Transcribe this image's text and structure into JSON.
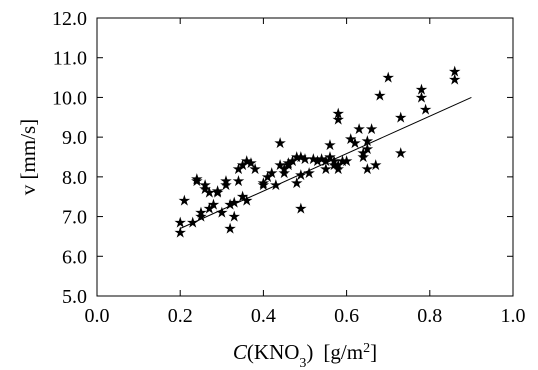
{
  "chart_data": {
    "type": "scatter",
    "xlabel": {
      "prefix_italic": "C",
      "base": "(KNO",
      "sub": "3",
      "after": ")",
      "unit": "[g/m",
      "unit_sup": "2",
      "unit_end": "]"
    },
    "ylabel": "v  [mm/s]",
    "xlim": [
      0.0,
      1.0
    ],
    "ylim": [
      5.0,
      12.0
    ],
    "x_ticks": [
      0.0,
      0.2,
      0.4,
      0.6,
      0.8,
      1.0
    ],
    "y_ticks": [
      5.0,
      6.0,
      7.0,
      8.0,
      9.0,
      10.0,
      11.0,
      12.0
    ],
    "x_tick_labels": [
      "0.0",
      "0.2",
      "0.4",
      "0.6",
      "0.8",
      "1.0"
    ],
    "y_tick_labels": [
      "5.0",
      "6.0",
      "7.0",
      "8.0",
      "9.0",
      "10.0",
      "11.0",
      "12.0"
    ],
    "grid": false,
    "marker": "star",
    "series": [
      {
        "points": [
          [
            0.2,
            6.6
          ],
          [
            0.2,
            6.85
          ],
          [
            0.21,
            7.4
          ],
          [
            0.23,
            6.85
          ],
          [
            0.24,
            7.9
          ],
          [
            0.24,
            7.95
          ],
          [
            0.25,
            7.0
          ],
          [
            0.25,
            7.1
          ],
          [
            0.26,
            7.7
          ],
          [
            0.26,
            7.8
          ],
          [
            0.27,
            7.2
          ],
          [
            0.27,
            7.6
          ],
          [
            0.28,
            7.3
          ],
          [
            0.29,
            7.6
          ],
          [
            0.29,
            7.65
          ],
          [
            0.3,
            7.1
          ],
          [
            0.31,
            7.8
          ],
          [
            0.31,
            7.9
          ],
          [
            0.32,
            6.7
          ],
          [
            0.32,
            7.3
          ],
          [
            0.33,
            7.35
          ],
          [
            0.33,
            7.0
          ],
          [
            0.34,
            7.9
          ],
          [
            0.34,
            8.2
          ],
          [
            0.35,
            7.5
          ],
          [
            0.35,
            8.3
          ],
          [
            0.36,
            7.4
          ],
          [
            0.36,
            8.4
          ],
          [
            0.37,
            8.35
          ],
          [
            0.38,
            8.2
          ],
          [
            0.4,
            7.8
          ],
          [
            0.4,
            7.85
          ],
          [
            0.41,
            8.0
          ],
          [
            0.42,
            8.1
          ],
          [
            0.43,
            7.8
          ],
          [
            0.44,
            8.85
          ],
          [
            0.44,
            8.3
          ],
          [
            0.45,
            8.2
          ],
          [
            0.45,
            8.1
          ],
          [
            0.46,
            8.3
          ],
          [
            0.46,
            8.35
          ],
          [
            0.47,
            8.4
          ],
          [
            0.48,
            7.85
          ],
          [
            0.48,
            8.5
          ],
          [
            0.49,
            8.05
          ],
          [
            0.49,
            7.2
          ],
          [
            0.49,
            8.5
          ],
          [
            0.5,
            8.45
          ],
          [
            0.51,
            8.1
          ],
          [
            0.52,
            8.45
          ],
          [
            0.53,
            8.4
          ],
          [
            0.54,
            8.45
          ],
          [
            0.55,
            8.2
          ],
          [
            0.55,
            8.4
          ],
          [
            0.56,
            8.8
          ],
          [
            0.56,
            8.5
          ],
          [
            0.57,
            8.3
          ],
          [
            0.57,
            8.4
          ],
          [
            0.58,
            9.6
          ],
          [
            0.58,
            9.45
          ],
          [
            0.58,
            8.2
          ],
          [
            0.58,
            8.3
          ],
          [
            0.59,
            8.4
          ],
          [
            0.6,
            8.4
          ],
          [
            0.61,
            8.95
          ],
          [
            0.62,
            8.85
          ],
          [
            0.63,
            9.2
          ],
          [
            0.64,
            8.5
          ],
          [
            0.64,
            8.6
          ],
          [
            0.65,
            8.7
          ],
          [
            0.65,
            8.9
          ],
          [
            0.65,
            8.2
          ],
          [
            0.66,
            9.2
          ],
          [
            0.67,
            8.3
          ],
          [
            0.68,
            10.05
          ],
          [
            0.7,
            10.5
          ],
          [
            0.73,
            9.5
          ],
          [
            0.73,
            8.6
          ],
          [
            0.78,
            10.2
          ],
          [
            0.78,
            10.0
          ],
          [
            0.79,
            9.7
          ],
          [
            0.86,
            10.65
          ],
          [
            0.86,
            10.45
          ]
        ]
      }
    ],
    "fit_line": {
      "type": "line",
      "from": [
        0.2,
        6.7
      ],
      "to": [
        0.9,
        10.0
      ]
    }
  }
}
